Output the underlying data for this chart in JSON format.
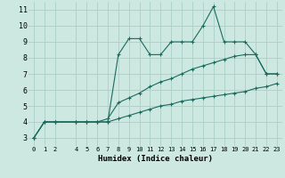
{
  "xlabel": "Humidex (Indice chaleur)",
  "xlim": [
    -0.5,
    23.5
  ],
  "ylim": [
    2.5,
    11.5
  ],
  "xticks": [
    0,
    1,
    2,
    4,
    5,
    6,
    7,
    8,
    9,
    10,
    11,
    12,
    13,
    14,
    15,
    16,
    17,
    18,
    19,
    20,
    21,
    22,
    23
  ],
  "xtick_labels": [
    "0",
    "1",
    "2",
    "4",
    "5",
    "6",
    "7",
    "8",
    "9",
    "10",
    "11",
    "12",
    "13",
    "14",
    "15",
    "16",
    "17",
    "18",
    "19",
    "20",
    "21",
    "22",
    "23"
  ],
  "yticks": [
    3,
    4,
    5,
    6,
    7,
    8,
    9,
    10,
    11
  ],
  "bg_color": "#cce8e0",
  "line_color": "#1a6b5e",
  "grid_color": "#aacfc5",
  "line1_x": [
    0,
    1,
    2,
    4,
    5,
    6,
    7,
    8,
    9,
    10,
    11,
    12,
    13,
    14,
    15,
    16,
    17,
    18,
    19,
    20,
    21,
    22,
    23
  ],
  "line1_y": [
    3.0,
    4.0,
    4.0,
    4.0,
    4.0,
    4.0,
    4.0,
    8.2,
    9.2,
    9.2,
    8.2,
    8.2,
    9.0,
    9.0,
    9.0,
    10.0,
    11.2,
    9.0,
    9.0,
    9.0,
    8.2,
    7.0,
    7.0
  ],
  "line2_x": [
    0,
    1,
    2,
    4,
    5,
    6,
    7,
    8,
    9,
    10,
    11,
    12,
    13,
    14,
    15,
    16,
    17,
    18,
    19,
    20,
    21,
    22,
    23
  ],
  "line2_y": [
    3.0,
    4.0,
    4.0,
    4.0,
    4.0,
    4.0,
    4.0,
    4.2,
    4.4,
    4.6,
    4.8,
    5.0,
    5.1,
    5.3,
    5.4,
    5.5,
    5.6,
    5.7,
    5.8,
    5.9,
    6.1,
    6.2,
    6.4
  ],
  "line3_x": [
    0,
    1,
    2,
    4,
    5,
    6,
    7,
    8,
    9,
    10,
    11,
    12,
    13,
    14,
    15,
    16,
    17,
    18,
    19,
    20,
    21,
    22,
    23
  ],
  "line3_y": [
    3.0,
    4.0,
    4.0,
    4.0,
    4.0,
    4.0,
    4.2,
    5.2,
    5.5,
    5.8,
    6.2,
    6.5,
    6.7,
    7.0,
    7.3,
    7.5,
    7.7,
    7.9,
    8.1,
    8.2,
    8.2,
    7.0,
    7.0
  ]
}
